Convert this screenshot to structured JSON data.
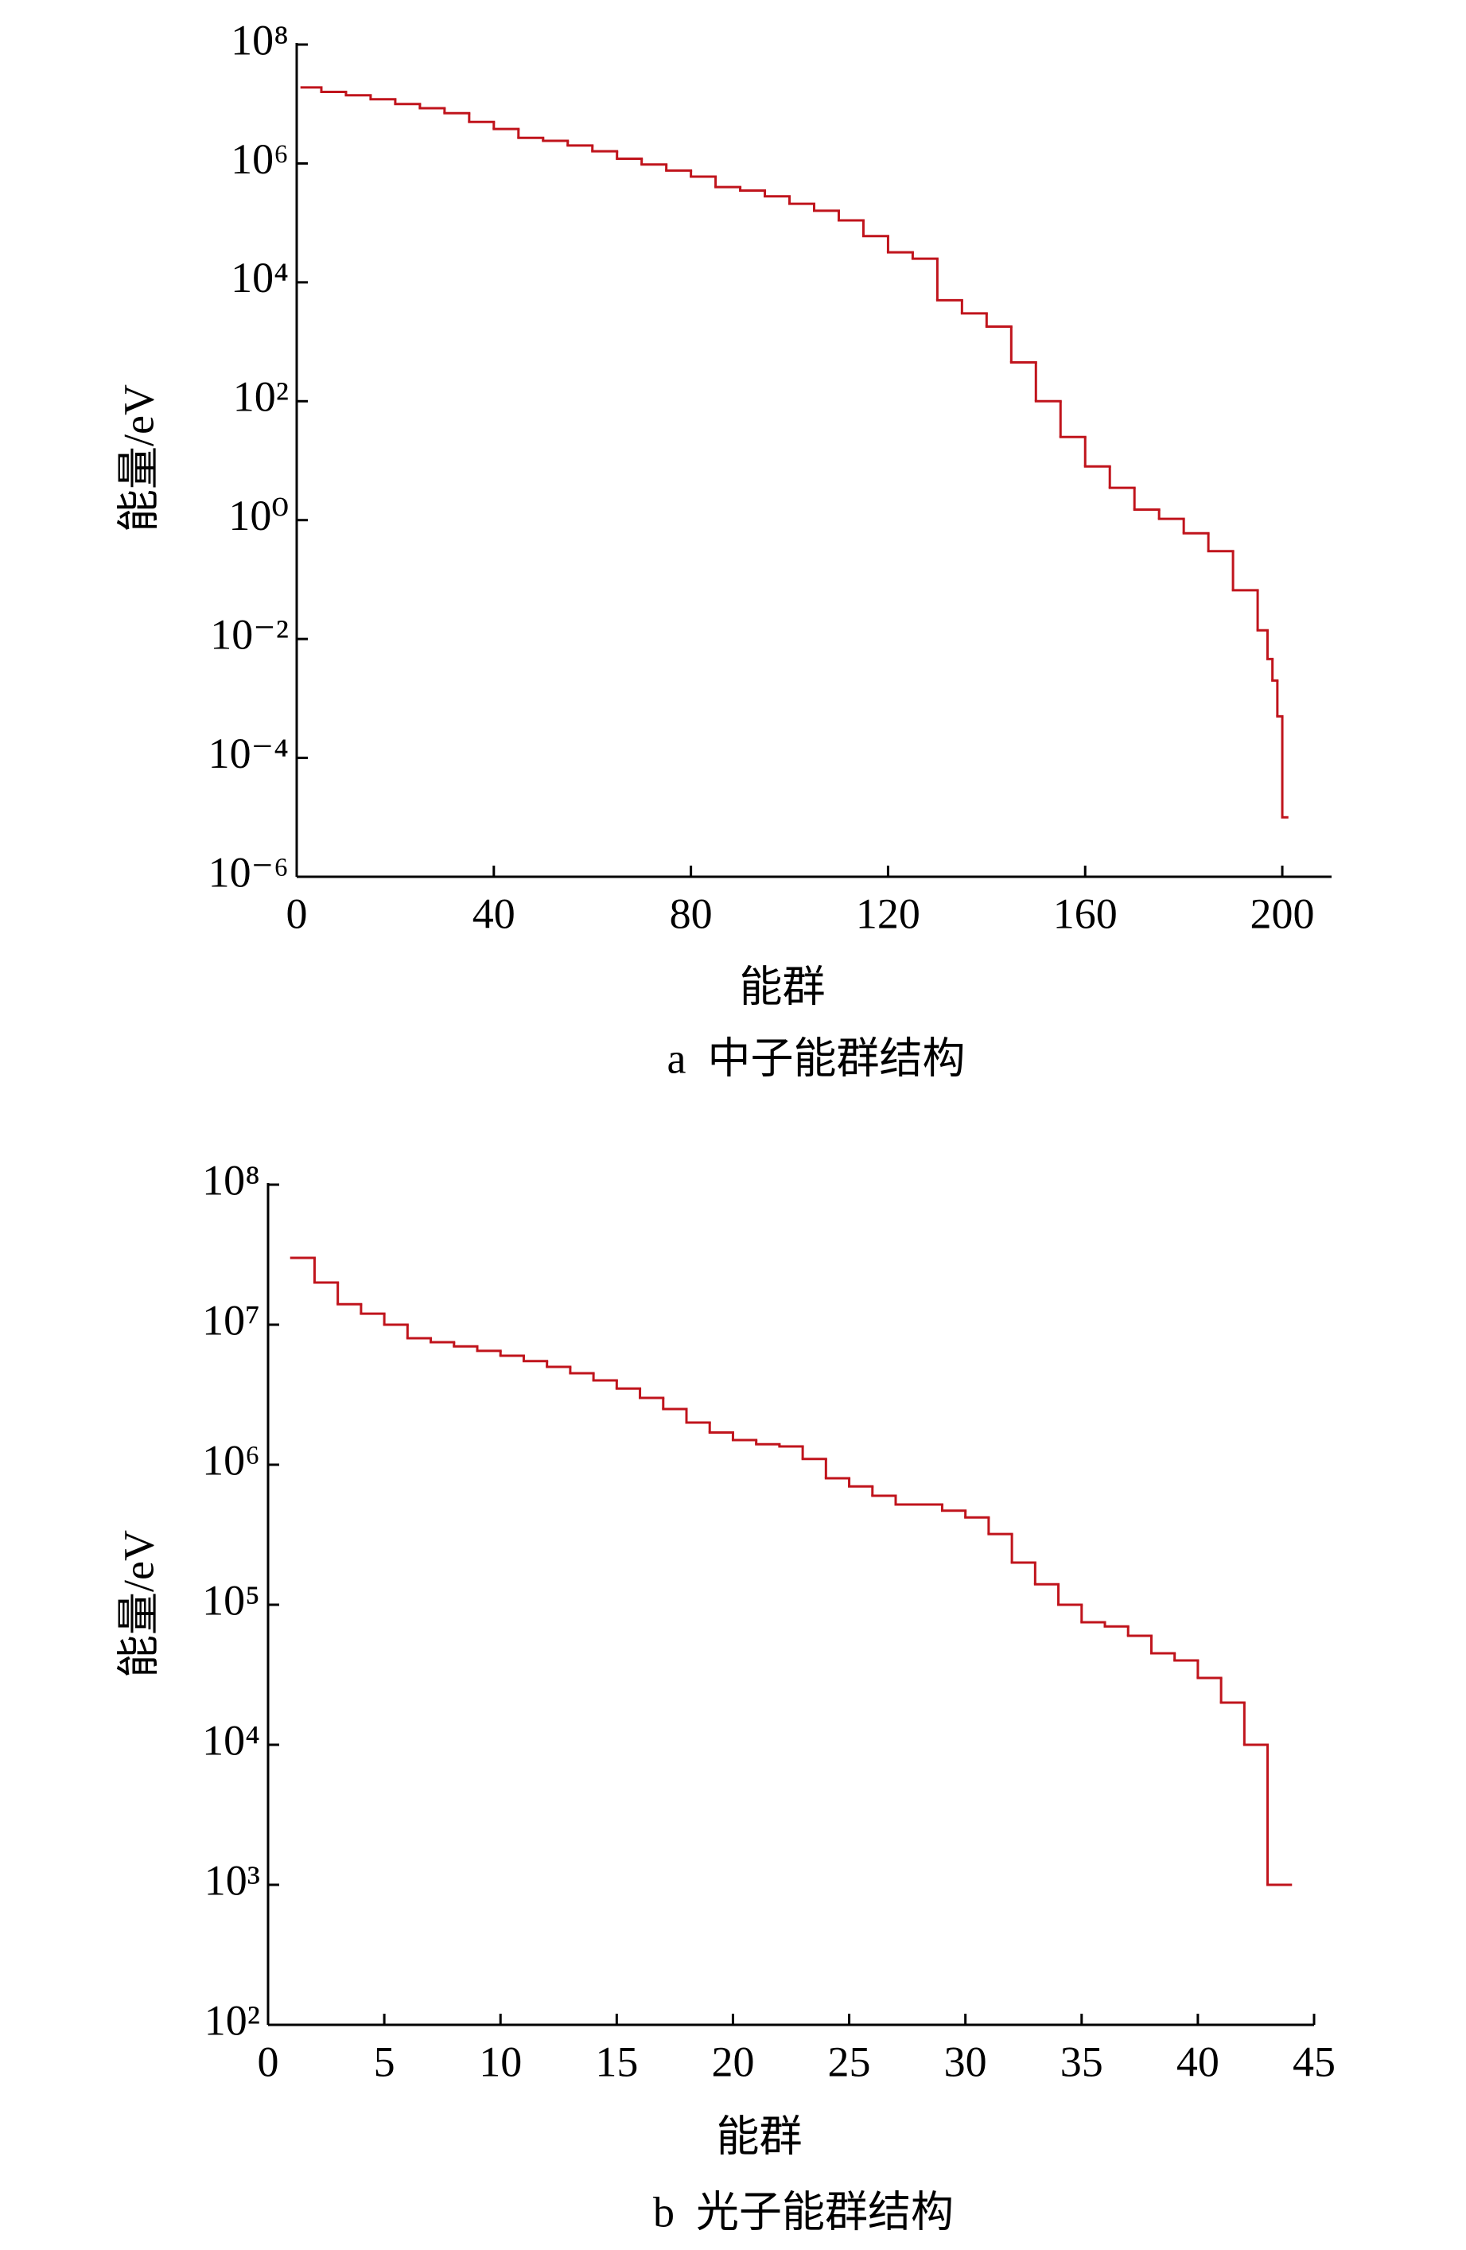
{
  "chart_data": [
    {
      "type": "step",
      "caption": "a  中子能群结构",
      "xlabel": "能群",
      "ylabel": "能量/eV",
      "log_y": true,
      "x": [
        1,
        5,
        10,
        15,
        20,
        25,
        30,
        35,
        40,
        45,
        50,
        55,
        60,
        65,
        70,
        75,
        80,
        85,
        90,
        95,
        100,
        105,
        110,
        115,
        120,
        125,
        130,
        135,
        140,
        145,
        150,
        155,
        160,
        165,
        170,
        175,
        180,
        185,
        190,
        195,
        197,
        198,
        199,
        200
      ],
      "series": [
        {
          "color": "#c0141c",
          "values": [
            19000000,
            16000000,
            14000000,
            12000000,
            10000000,
            8500000,
            7000000,
            5000000,
            3800000,
            2700000,
            2400000,
            2000000,
            1600000,
            1200000,
            960000,
            760000,
            600000,
            400000,
            350000,
            280000,
            210000,
            160000,
            110000,
            60000,
            32000,
            25000,
            5000,
            3000,
            1800,
            450,
            100,
            25,
            8,
            3.5,
            1.5,
            1.05,
            0.6,
            0.3,
            0.066,
            0.014,
            0.0046,
            0.002,
            0.0005,
            1e-05
          ]
        }
      ],
      "xlim": [
        0,
        210
      ],
      "xticks": [
        0,
        40,
        80,
        120,
        160,
        200
      ],
      "ylim": [
        1e-06,
        100000000
      ],
      "yticks": [
        {
          "value": 100000000,
          "label": "10⁸"
        },
        {
          "value": 1000000,
          "label": "10⁶"
        },
        {
          "value": 10000,
          "label": "10⁴"
        },
        {
          "value": 100,
          "label": "10²"
        },
        {
          "value": 1,
          "label": "10⁰"
        },
        {
          "value": 0.01,
          "label": "10⁻²"
        },
        {
          "value": 0.0001,
          "label": "10⁻⁴"
        },
        {
          "value": 1e-06,
          "label": "10⁻⁶"
        }
      ]
    },
    {
      "type": "step",
      "caption": "b  光子能群结构",
      "xlabel": "能群",
      "ylabel": "能量/eV",
      "log_y": true,
      "x": [
        1,
        2,
        3,
        4,
        5,
        6,
        7,
        8,
        9,
        10,
        11,
        12,
        13,
        14,
        15,
        16,
        17,
        18,
        19,
        20,
        21,
        22,
        23,
        24,
        25,
        26,
        27,
        28,
        29,
        30,
        31,
        32,
        33,
        34,
        35,
        36,
        37,
        38,
        39,
        40,
        41,
        42,
        43
      ],
      "series": [
        {
          "color": "#c0141c",
          "values": [
            30000000,
            20000000,
            14000000,
            12000000,
            10000000,
            8000000,
            7500000,
            7000000,
            6500000,
            6000000,
            5500000,
            5000000,
            4500000,
            4000000,
            3500000,
            3000000,
            2500000,
            2000000,
            1700000,
            1500000,
            1400000,
            1350000,
            1100000,
            800000,
            700000,
            600000,
            520000,
            520000,
            470000,
            420000,
            320000,
            200000,
            140000,
            100000,
            75000,
            70000,
            60000,
            45000,
            40000,
            30000,
            20000,
            10000,
            1000
          ]
        }
      ],
      "xlim": [
        0,
        45
      ],
      "xticks": [
        0,
        5,
        10,
        15,
        20,
        25,
        30,
        35,
        40,
        45
      ],
      "ylim": [
        100,
        100000000
      ],
      "yticks": [
        {
          "value": 100000000,
          "label": "10⁸"
        },
        {
          "value": 10000000,
          "label": "10⁷"
        },
        {
          "value": 1000000,
          "label": "10⁶"
        },
        {
          "value": 100000,
          "label": "10⁵"
        },
        {
          "value": 10000,
          "label": "10⁴"
        },
        {
          "value": 1000,
          "label": "10³"
        },
        {
          "value": 100,
          "label": "10²"
        }
      ]
    }
  ]
}
